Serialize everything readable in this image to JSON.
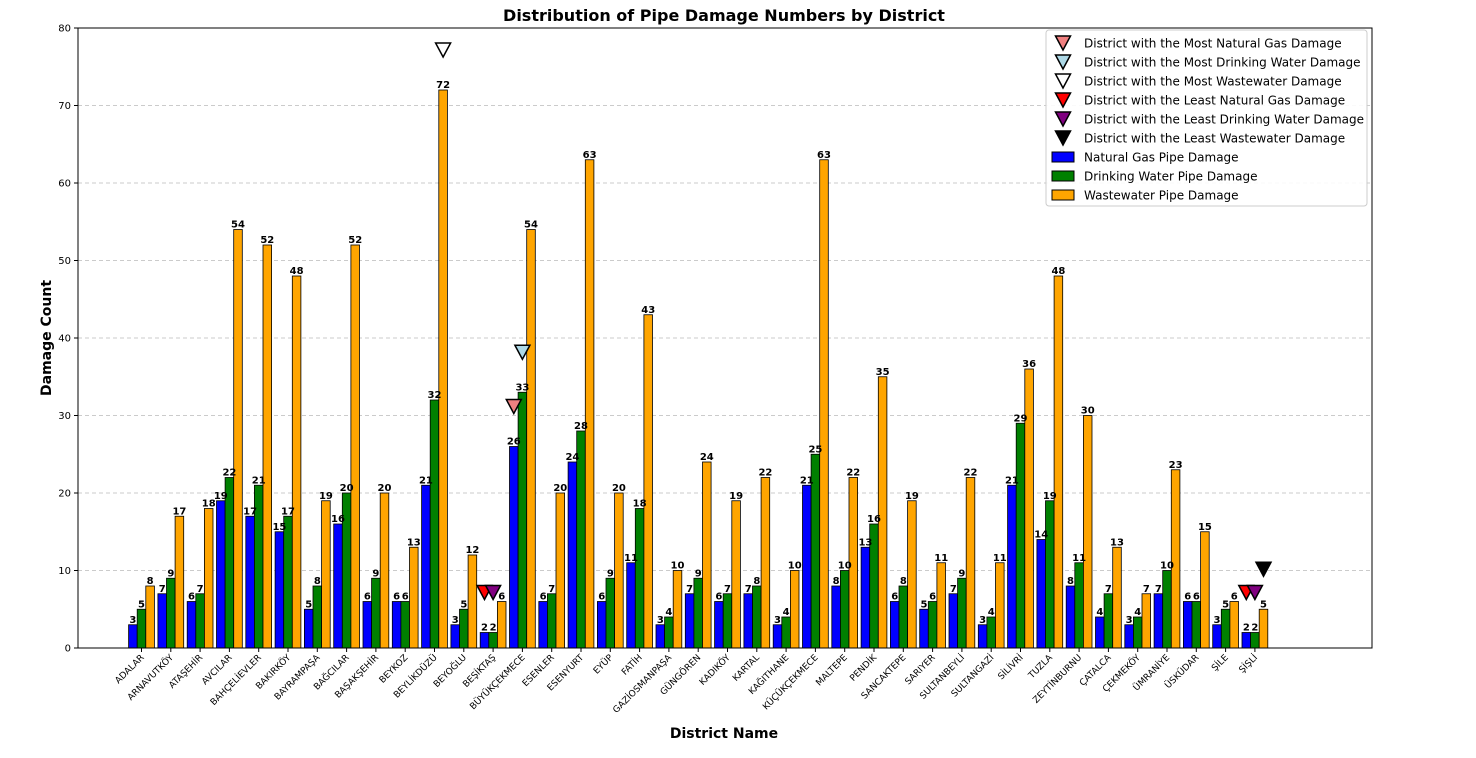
{
  "chart_data": {
    "type": "bar",
    "title": "Distribution of Pipe Damage Numbers by District",
    "xlabel": "District Name",
    "ylabel": "Damage Count",
    "ylim": [
      0,
      80
    ],
    "yticks": [
      0,
      10,
      20,
      30,
      40,
      50,
      60,
      70,
      80
    ],
    "grid": "y-dashed",
    "legend_position": "top-right",
    "categories": [
      "ADALAR",
      "ARNAVUTKÖY",
      "ATAŞEHİR",
      "AVCILAR",
      "BAHÇELİEVLER",
      "BAKIRKÖY",
      "BAYRAMPAŞA",
      "BAĞCILAR",
      "BAŞAKŞEHİR",
      "BEYKOZ",
      "BEYLİKDÜZÜ",
      "BEYOĞLU",
      "BEŞİKTAŞ",
      "BÜYÜKÇEKMECE",
      "ESENLER",
      "ESENYURT",
      "EYÜP",
      "FATİH",
      "GAZİOSMANPAŞA",
      "GÜNGÖREN",
      "KADIKÖY",
      "KARTAL",
      "KAĞITHANE",
      "KÜÇÜKÇEKMECE",
      "MALTEPE",
      "PENDİK",
      "SANCAKTEPE",
      "SARIYER",
      "SULTANBEYLİ",
      "SULTANGAZİ",
      "SİLİVRİ",
      "TUZLA",
      "ZEYTİNBURNU",
      "ÇATALCA",
      "ÇEKMEKÖY",
      "ÜMRANİYE",
      "ÜSKÜDAR",
      "ŞİLE",
      "ŞİŞLİ"
    ],
    "series": [
      {
        "name": "Natural Gas Pipe Damage",
        "color": "#0000ff",
        "values": [
          3,
          7,
          6,
          19,
          17,
          15,
          5,
          16,
          6,
          6,
          21,
          3,
          2,
          26,
          6,
          24,
          6,
          11,
          3,
          7,
          6,
          7,
          3,
          21,
          8,
          13,
          6,
          5,
          7,
          3,
          21,
          14,
          8,
          4,
          3,
          7,
          6,
          3,
          2
        ]
      },
      {
        "name": "Drinking Water Pipe Damage",
        "color": "#008000",
        "values": [
          5,
          9,
          7,
          22,
          21,
          17,
          8,
          20,
          9,
          6,
          32,
          5,
          2,
          33,
          7,
          28,
          9,
          18,
          4,
          9,
          7,
          8,
          4,
          25,
          10,
          16,
          8,
          6,
          9,
          4,
          29,
          19,
          11,
          7,
          4,
          10,
          6,
          5,
          2
        ]
      },
      {
        "name": "Wastewater Pipe Damage",
        "color": "#ffa500",
        "values": [
          8,
          17,
          18,
          54,
          52,
          48,
          19,
          52,
          20,
          13,
          72,
          12,
          6,
          54,
          20,
          63,
          20,
          43,
          10,
          24,
          19,
          22,
          10,
          63,
          22,
          35,
          19,
          11,
          22,
          11,
          36,
          48,
          30,
          13,
          7,
          23,
          15,
          6,
          5
        ]
      }
    ],
    "markers": [
      {
        "name": "District with the Most Natural Gas Damage",
        "color": "#f08080",
        "district": "BÜYÜKÇEKMECE",
        "series": 0,
        "value": 26
      },
      {
        "name": "District with the Most Drinking Water Damage",
        "color": "#add8e6",
        "district": "BÜYÜKÇEKMECE",
        "series": 1,
        "value": 33
      },
      {
        "name": "District with the Most Wastewater Damage",
        "color": "#ffffff",
        "district": "BEYLİKDÜZÜ",
        "series": 2,
        "value": 72
      },
      {
        "name": "District with the Least Natural Gas Damage",
        "color": "#ff0000",
        "district": "ŞİŞLİ",
        "series": 0,
        "value": 2
      },
      {
        "name": "District with the Least Drinking Water Damage",
        "color": "#800080",
        "district": "ŞİŞLİ",
        "series": 1,
        "value": 2
      },
      {
        "name": "District with the Least Wastewater Damage",
        "color": "#000000",
        "district": "ŞİŞLİ",
        "series": 2,
        "value": 5
      }
    ],
    "extra_markers": [
      {
        "color": "#ff0000",
        "district": "BEŞİKTAŞ",
        "series": 0,
        "value": 2
      },
      {
        "color": "#800080",
        "district": "BEŞİKTAŞ",
        "series": 1,
        "value": 2
      }
    ]
  }
}
